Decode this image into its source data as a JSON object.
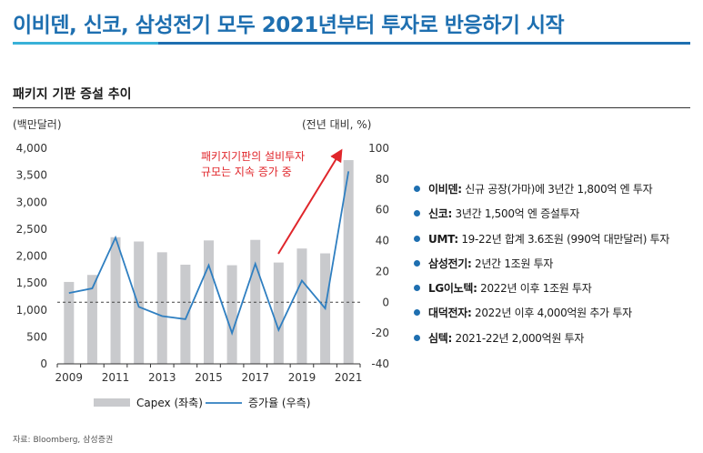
{
  "header": {
    "title": "이비덴, 신코, 삼성전기 모두 2021년부터 투자로 반응하기 시작"
  },
  "chart_panel": {
    "subtitle": "패키지 기판 증설 추이",
    "left_unit": "(백만달러)",
    "right_unit": "(전년 대비, %)",
    "annotation_line1": "패키지기판의 설비투자",
    "annotation_line2": "규모는 지속 증가 중",
    "legend_bar": "Capex (좌축)",
    "legend_line": "증가율 (우측)"
  },
  "colors": {
    "title_blue": "#1e6fb0",
    "bar_gray": "#c9cacd",
    "line_blue": "#2f7fc1",
    "arrow_red": "#e0262b",
    "bullet_blue": "#1e6fb0"
  },
  "chart_data": {
    "type": "bar",
    "categories": [
      "2009",
      "2010",
      "2011",
      "2012",
      "2013",
      "2014",
      "2015",
      "2016",
      "2017",
      "2018",
      "2019",
      "2020",
      "2021"
    ],
    "x_tick_labels": [
      "2009",
      "2011",
      "2013",
      "2015",
      "2017",
      "2019",
      "2021"
    ],
    "series": [
      {
        "name": "Capex (좌축)",
        "type": "bar",
        "axis": "left",
        "values": [
          1520,
          1650,
          2350,
          2270,
          2070,
          1840,
          2290,
          1830,
          2300,
          1880,
          2140,
          2050,
          3780
        ]
      },
      {
        "name": "증가율 (우측)",
        "type": "line",
        "axis": "right",
        "values": [
          6,
          9,
          42,
          -3,
          -9,
          -11,
          24,
          -20,
          25,
          -18,
          14,
          -4,
          85
        ]
      }
    ],
    "y_left": {
      "min": 0,
      "max": 4000,
      "ticks": [
        "0",
        "500",
        "1,000",
        "1,500",
        "2,000",
        "2,500",
        "3,000",
        "3,500",
        "4,000"
      ]
    },
    "y_right": {
      "min": -40,
      "max": 100,
      "ticks": [
        "-40",
        "-20",
        "0",
        "20",
        "40",
        "60",
        "80",
        "100"
      ]
    },
    "zero_reference": "dashed line at 0% on right axis",
    "grid": false,
    "legend_position": "bottom"
  },
  "bullets": [
    {
      "company": "이비덴:",
      "text": " 신규 공장(가마)에 3년간 1,800억 엔 투자"
    },
    {
      "company": "신코:",
      "text": " 3년간 1,500억 엔 증설투자"
    },
    {
      "company": "UMT:",
      "text": " 19-22년 합계 3.6조원  (990억 대만달러) 투자"
    },
    {
      "company": "삼성전기:",
      "text": " 2년간 1조원 투자"
    },
    {
      "company": "LG이노텍:",
      "text": " 2022년 이후 1조원 투자"
    },
    {
      "company": "대덕전자:",
      "text": " 2022년 이후 4,000억원 추가 투자"
    },
    {
      "company": "심텍:",
      "text": " 2021-22년 2,000억원 투자"
    }
  ],
  "footer": {
    "source": "자료: Bloomberg, 삼성증권"
  }
}
